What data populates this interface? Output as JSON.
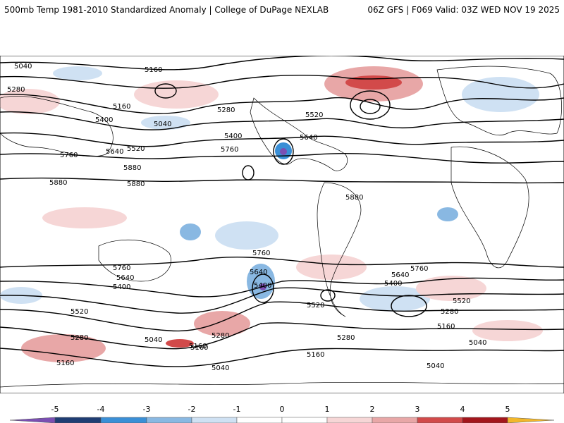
{
  "header": {
    "title": "500mb Temp 1981-2010 Standardized Anomaly | College of DuPage NEXLAB",
    "run_info": "06Z GFS | F069 Valid: 03Z WED NOV 19 2025"
  },
  "colors": {
    "neg5": "#7b4fb3",
    "neg4": "#1f3d73",
    "neg3": "#3a8fd6",
    "neg2": "#89b8e2",
    "neg1": "#cfe1f3",
    "zero": "#ffffff",
    "pos1": "#f6d6d6",
    "pos2": "#e8a7a7",
    "pos3": "#d24a4a",
    "pos4": "#a3161c",
    "pos5": "#f2b72b",
    "contour": "#000000",
    "land": "#000000"
  },
  "colorbar": {
    "ticks": [
      "-5",
      "-4",
      "-3",
      "-2",
      "-1",
      "0",
      "1",
      "2",
      "3",
      "4",
      "5"
    ]
  },
  "contour_labels": {
    "items": [
      "5040",
      "5160",
      "5280",
      "5400",
      "5520",
      "5640",
      "5760",
      "5880",
      "5880",
      "5880",
      "5760",
      "5640",
      "5520",
      "5400",
      "5280",
      "5160",
      "5040",
      "5040",
      "5160",
      "5280",
      "5400",
      "5520",
      "5640",
      "5760",
      "5880",
      "5760",
      "5640",
      "5520",
      "5400",
      "5280",
      "5160",
      "5040",
      "5280",
      "5400",
      "5520",
      "5640",
      "5760",
      "5160",
      "5280",
      "5040",
      "5160",
      "5040",
      "5280",
      "5160"
    ]
  }
}
